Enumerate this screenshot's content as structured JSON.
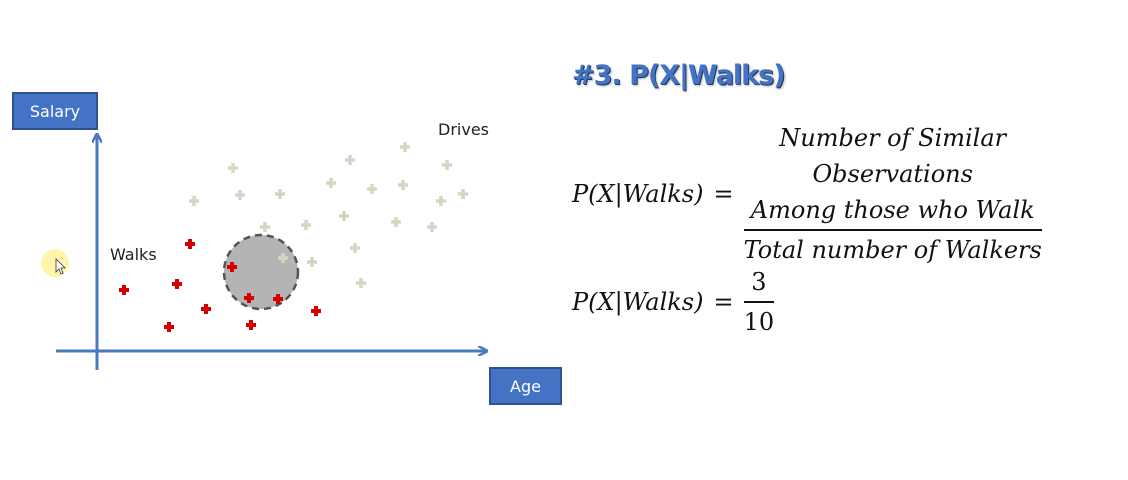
{
  "axes": {
    "y_label": "Salary",
    "x_label": "Age"
  },
  "groups": {
    "walks_label": "Walks",
    "drives_label": "Drives"
  },
  "title": "#3. P(X|Walks)",
  "equation1": {
    "lhs": "P(X|Walks)",
    "equals": "=",
    "numerator_lines": [
      "Number of Similar",
      "Observations",
      "Among those who Walk"
    ],
    "denominator": "Total number of Walkers"
  },
  "equation2": {
    "lhs": "P(X|Walks)",
    "equals": "=",
    "numerator": "3",
    "denominator": "10"
  },
  "colors": {
    "walks": "#d40000",
    "drives": "#d6d6c4",
    "axis": "#4a7abf",
    "circle": "#b4b4b4"
  }
}
